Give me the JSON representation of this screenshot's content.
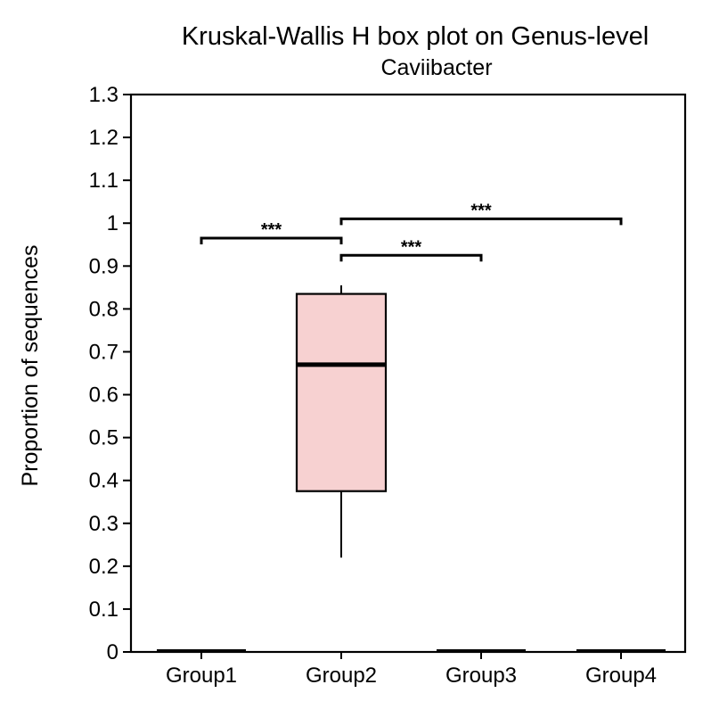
{
  "chart_data": {
    "type": "box",
    "title": "Kruskal-Wallis H box plot on Genus-level",
    "subtitle": "Caviibacter",
    "ylabel": "Proportion of sequences",
    "xlabel": "",
    "ylim": [
      0,
      1.3
    ],
    "yticks": [
      "0",
      "0.1",
      "0.2",
      "0.3",
      "0.4",
      "0.5",
      "0.6",
      "0.7",
      "0.8",
      "0.9",
      "1",
      "1.1",
      "1.2",
      "1.3"
    ],
    "ytick_values": [
      0,
      0.1,
      0.2,
      0.3,
      0.4,
      0.5,
      0.6,
      0.7,
      0.8,
      0.9,
      1.0,
      1.1,
      1.2,
      1.3
    ],
    "categories": [
      "Group1",
      "Group2",
      "Group3",
      "Group4"
    ],
    "boxes": [
      {
        "group": "Group1",
        "min": 0,
        "q1": 0,
        "median": 0,
        "q3": 0,
        "max": 0
      },
      {
        "group": "Group2",
        "min": 0.22,
        "q1": 0.375,
        "median": 0.67,
        "q3": 0.835,
        "max": 0.855
      },
      {
        "group": "Group3",
        "min": 0,
        "q1": 0,
        "median": 0,
        "q3": 0,
        "max": 0
      },
      {
        "group": "Group4",
        "min": 0,
        "q1": 0,
        "median": 0,
        "q3": 0,
        "max": 0
      }
    ],
    "box_color": "#f7d1d1",
    "significance": [
      {
        "from": 0,
        "to": 1,
        "y": 0.965,
        "label": "***"
      },
      {
        "from": 1,
        "to": 2,
        "y": 0.925,
        "label": "***"
      },
      {
        "from": 1,
        "to": 3,
        "y": 1.01,
        "label": "***"
      }
    ],
    "grid": false
  }
}
